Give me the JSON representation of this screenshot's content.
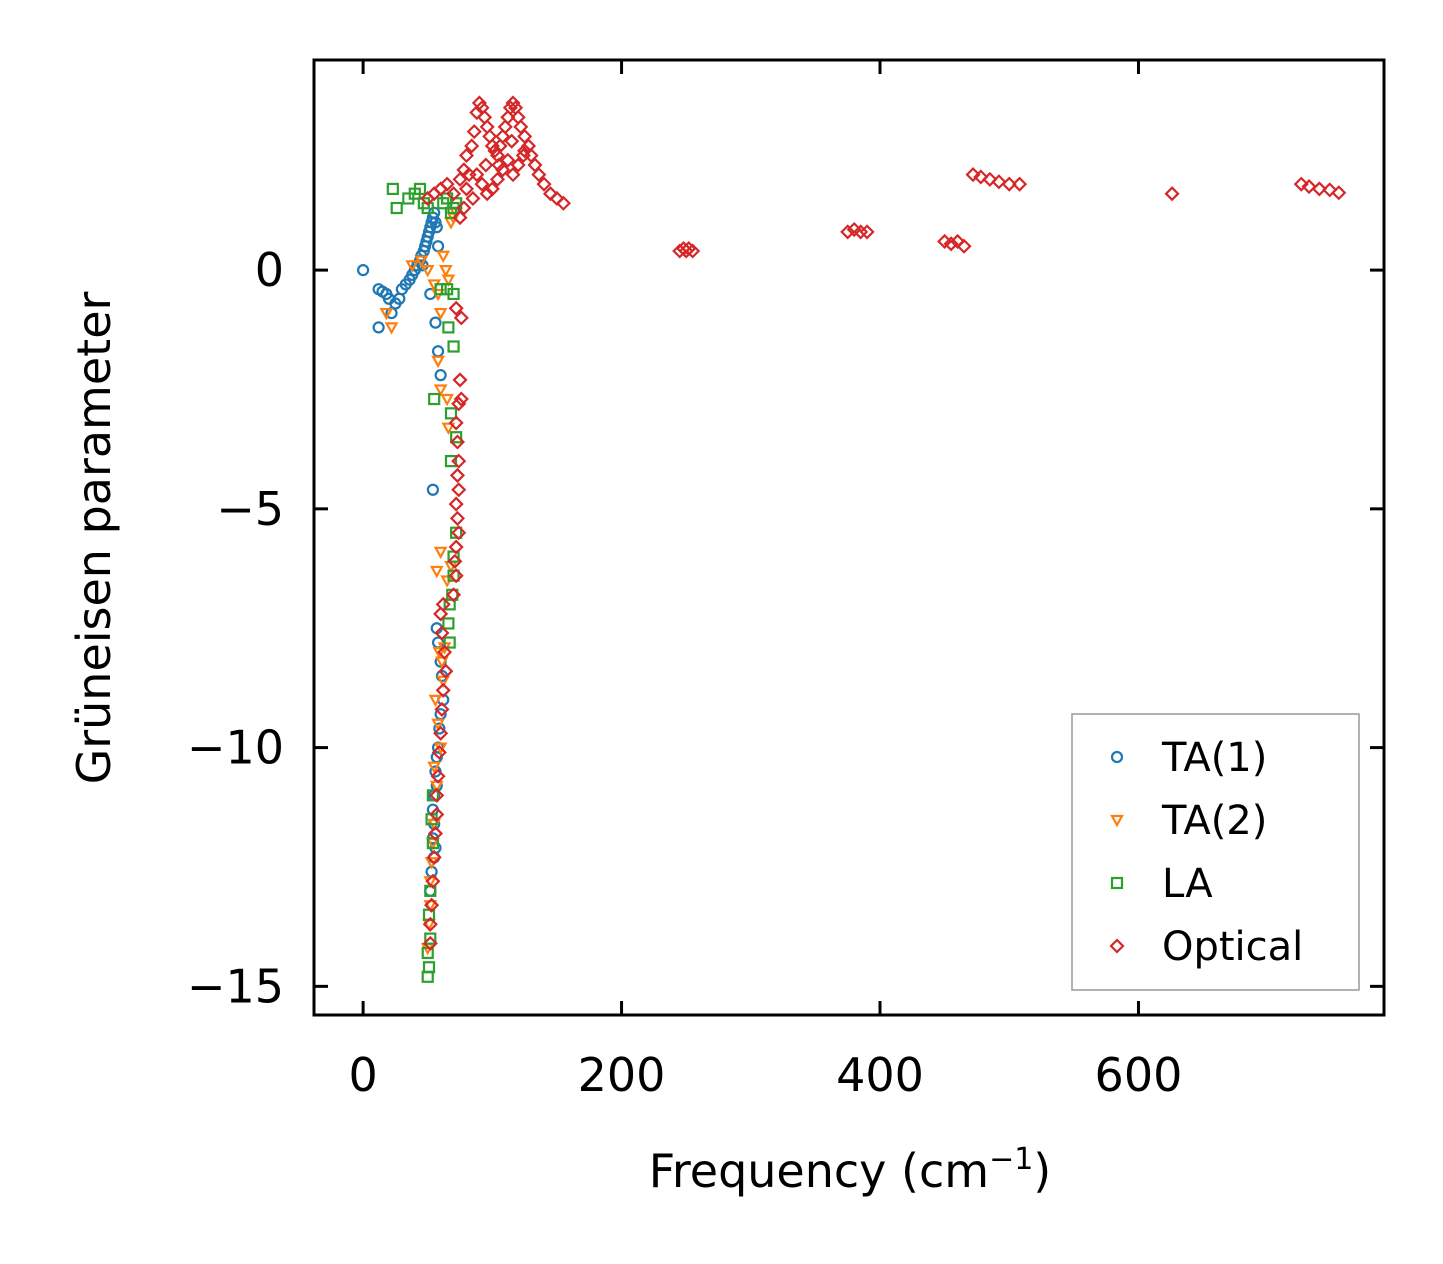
{
  "chart_data": {
    "type": "scatter",
    "title": "",
    "xlabel": "Frequency (cm",
    "xlabel_superscript": "−1",
    "xlabel_suffix": ")",
    "ylabel": "Grüneisen parameter",
    "xlim": [
      -38,
      790
    ],
    "ylim": [
      -15.6,
      4.4
    ],
    "x_ticks": [
      0,
      200,
      400,
      600
    ],
    "x_tick_labels": [
      "0",
      "200",
      "400",
      "600"
    ],
    "y_ticks": [
      0,
      -5,
      -10,
      -15
    ],
    "y_tick_labels": [
      "0",
      "−5",
      "−10",
      "−15"
    ],
    "grid": false,
    "legend_position": "lower-right",
    "series": [
      {
        "name": "TA(1)",
        "marker": "circle",
        "color": "#1f77b4",
        "points": [
          [
            0,
            0.0
          ],
          [
            12,
            -0.4
          ],
          [
            15,
            -0.45
          ],
          [
            18,
            -0.5
          ],
          [
            20,
            -0.6
          ],
          [
            22,
            -0.9
          ],
          [
            25,
            -0.7
          ],
          [
            28,
            -0.6
          ],
          [
            12,
            -1.2
          ],
          [
            30,
            -0.4
          ],
          [
            33,
            -0.3
          ],
          [
            36,
            -0.2
          ],
          [
            38,
            -0.1
          ],
          [
            40,
            0.0
          ],
          [
            42,
            0.1
          ],
          [
            44,
            0.2
          ],
          [
            45,
            0.3
          ],
          [
            46,
            0.1
          ],
          [
            47,
            0.4
          ],
          [
            48,
            0.5
          ],
          [
            49,
            0.6
          ],
          [
            50,
            0.7
          ],
          [
            51,
            0.8
          ],
          [
            52,
            0.9
          ],
          [
            53,
            1.0
          ],
          [
            54,
            1.1
          ],
          [
            55,
            1.2
          ],
          [
            56,
            1.0
          ],
          [
            57,
            0.9
          ],
          [
            58,
            0.5
          ],
          [
            52,
            -0.5
          ],
          [
            56,
            -1.1
          ],
          [
            58,
            -1.7
          ],
          [
            60,
            -2.2
          ],
          [
            54,
            -4.6
          ],
          [
            57,
            -7.5
          ],
          [
            58,
            -7.8
          ],
          [
            60,
            -8.2
          ],
          [
            61,
            -8.5
          ],
          [
            62,
            -9.0
          ],
          [
            60,
            -9.3
          ],
          [
            59,
            -9.6
          ],
          [
            58,
            -10.0
          ],
          [
            57,
            -10.2
          ],
          [
            56,
            -10.5
          ],
          [
            57,
            -10.8
          ],
          [
            55,
            -11.0
          ],
          [
            54,
            -11.3
          ],
          [
            55,
            -11.6
          ],
          [
            54,
            -11.9
          ],
          [
            56,
            -12.1
          ],
          [
            55,
            -12.3
          ],
          [
            53,
            -12.6
          ],
          [
            52,
            -13.0
          ]
        ]
      },
      {
        "name": "TA(2)",
        "marker": "triangle-down",
        "color": "#ff7f0e",
        "points": [
          [
            18,
            -0.9
          ],
          [
            22,
            -1.2
          ],
          [
            38,
            0.1
          ],
          [
            45,
            0.2
          ],
          [
            50,
            0.0
          ],
          [
            55,
            -0.3
          ],
          [
            58,
            -0.5
          ],
          [
            60,
            -0.9
          ],
          [
            62,
            0.3
          ],
          [
            64,
            0.0
          ],
          [
            66,
            -0.2
          ],
          [
            68,
            1.0
          ],
          [
            70,
            1.1
          ],
          [
            72,
            1.2
          ],
          [
            58,
            -1.9
          ],
          [
            60,
            -2.5
          ],
          [
            65,
            -2.7
          ],
          [
            66,
            -3.3
          ],
          [
            57,
            -6.3
          ],
          [
            60,
            -5.9
          ],
          [
            65,
            -6.5
          ],
          [
            68,
            -6.2
          ],
          [
            59,
            -8.0
          ],
          [
            61,
            -8.2
          ],
          [
            62,
            -8.6
          ],
          [
            63,
            -7.9
          ],
          [
            56,
            -9.0
          ],
          [
            58,
            -9.5
          ],
          [
            60,
            -10.0
          ],
          [
            55,
            -10.4
          ],
          [
            57,
            -10.8
          ],
          [
            55,
            -11.6
          ],
          [
            54,
            -12.0
          ],
          [
            53,
            -12.4
          ],
          [
            52,
            -12.8
          ],
          [
            52,
            -13.3
          ],
          [
            51,
            -13.7
          ],
          [
            50,
            -14.2
          ]
        ]
      },
      {
        "name": "LA",
        "marker": "square",
        "color": "#2ca02c",
        "points": [
          [
            23,
            1.7
          ],
          [
            26,
            1.3
          ],
          [
            35,
            1.5
          ],
          [
            40,
            1.6
          ],
          [
            44,
            1.7
          ],
          [
            47,
            1.4
          ],
          [
            50,
            1.3
          ],
          [
            62,
            1.4
          ],
          [
            65,
            1.5
          ],
          [
            68,
            1.2
          ],
          [
            70,
            1.3
          ],
          [
            72,
            1.4
          ],
          [
            60,
            -0.4
          ],
          [
            65,
            -0.4
          ],
          [
            70,
            -0.5
          ],
          [
            66,
            -1.2
          ],
          [
            70,
            -1.6
          ],
          [
            55,
            -2.7
          ],
          [
            68,
            -3.0
          ],
          [
            72,
            -3.5
          ],
          [
            68,
            -4.0
          ],
          [
            72,
            -5.5
          ],
          [
            70,
            -6.0
          ],
          [
            70,
            -6.4
          ],
          [
            69,
            -6.8
          ],
          [
            67,
            -7.0
          ],
          [
            66,
            -7.4
          ],
          [
            67,
            -7.8
          ],
          [
            54,
            -11.0
          ],
          [
            53,
            -11.5
          ],
          [
            54,
            -12.0
          ],
          [
            52,
            -13.0
          ],
          [
            51,
            -13.5
          ],
          [
            52,
            -14.0
          ],
          [
            50,
            -14.3
          ],
          [
            51,
            -14.6
          ],
          [
            50,
            -14.8
          ]
        ]
      },
      {
        "name": "Optical",
        "marker": "diamond",
        "color": "#d62728",
        "points": [
          [
            50,
            1.5
          ],
          [
            55,
            1.6
          ],
          [
            60,
            1.7
          ],
          [
            65,
            1.8
          ],
          [
            70,
            1.6
          ],
          [
            75,
            1.9
          ],
          [
            78,
            2.1
          ],
          [
            80,
            2.4
          ],
          [
            82,
            2.0
          ],
          [
            84,
            2.6
          ],
          [
            86,
            2.9
          ],
          [
            88,
            3.3
          ],
          [
            90,
            3.5
          ],
          [
            92,
            3.4
          ],
          [
            94,
            3.2
          ],
          [
            96,
            3.0
          ],
          [
            98,
            2.8
          ],
          [
            100,
            2.6
          ],
          [
            102,
            2.5
          ],
          [
            104,
            2.4
          ],
          [
            106,
            2.6
          ],
          [
            108,
            2.8
          ],
          [
            110,
            3.0
          ],
          [
            112,
            3.2
          ],
          [
            114,
            3.4
          ],
          [
            116,
            3.5
          ],
          [
            118,
            3.4
          ],
          [
            120,
            3.2
          ],
          [
            122,
            3.0
          ],
          [
            125,
            2.8
          ],
          [
            128,
            2.6
          ],
          [
            130,
            2.4
          ],
          [
            133,
            2.2
          ],
          [
            136,
            2.0
          ],
          [
            140,
            1.8
          ],
          [
            145,
            1.6
          ],
          [
            150,
            1.5
          ],
          [
            155,
            1.4
          ],
          [
            88,
            2.0
          ],
          [
            92,
            1.8
          ],
          [
            96,
            1.6
          ],
          [
            100,
            1.7
          ],
          [
            104,
            1.9
          ],
          [
            108,
            2.1
          ],
          [
            112,
            2.3
          ],
          [
            116,
            2.0
          ],
          [
            120,
            2.2
          ],
          [
            124,
            2.4
          ],
          [
            85,
            1.5
          ],
          [
            80,
            1.7
          ],
          [
            95,
            2.2
          ],
          [
            105,
            2.2
          ],
          [
            115,
            2.7
          ],
          [
            125,
            2.5
          ],
          [
            78,
            1.3
          ],
          [
            75,
            1.1
          ],
          [
            72,
            -0.8
          ],
          [
            76,
            -1.0
          ],
          [
            75,
            -2.3
          ],
          [
            74,
            -2.8
          ],
          [
            76,
            -2.7
          ],
          [
            72,
            -3.2
          ],
          [
            73,
            -3.6
          ],
          [
            74,
            -4.0
          ],
          [
            73,
            -4.3
          ],
          [
            74,
            -4.6
          ],
          [
            72,
            -4.9
          ],
          [
            73,
            -5.2
          ],
          [
            74,
            -5.5
          ],
          [
            72,
            -5.8
          ],
          [
            71,
            -6.1
          ],
          [
            72,
            -6.4
          ],
          [
            70,
            -6.8
          ],
          [
            62,
            -7.0
          ],
          [
            60,
            -7.2
          ],
          [
            61,
            -7.6
          ],
          [
            63,
            -8.0
          ],
          [
            64,
            -8.4
          ],
          [
            62,
            -8.8
          ],
          [
            61,
            -9.2
          ],
          [
            60,
            -9.7
          ],
          [
            59,
            -10.1
          ],
          [
            58,
            -10.6
          ],
          [
            57,
            -11.0
          ],
          [
            57,
            -11.4
          ],
          [
            56,
            -11.8
          ],
          [
            55,
            -12.3
          ],
          [
            54,
            -12.8
          ],
          [
            53,
            -13.3
          ],
          [
            52,
            -13.7
          ],
          [
            52,
            -14.1
          ],
          [
            245,
            0.4
          ],
          [
            248,
            0.45
          ],
          [
            250,
            0.4
          ],
          [
            252,
            0.45
          ],
          [
            255,
            0.4
          ],
          [
            375,
            0.8
          ],
          [
            380,
            0.85
          ],
          [
            385,
            0.8
          ],
          [
            390,
            0.8
          ],
          [
            450,
            0.6
          ],
          [
            455,
            0.55
          ],
          [
            460,
            0.6
          ],
          [
            465,
            0.5
          ],
          [
            472,
            2.0
          ],
          [
            478,
            1.95
          ],
          [
            485,
            1.9
          ],
          [
            492,
            1.85
          ],
          [
            500,
            1.8
          ],
          [
            508,
            1.8
          ],
          [
            626,
            1.6
          ],
          [
            726,
            1.8
          ],
          [
            732,
            1.75
          ],
          [
            740,
            1.7
          ],
          [
            748,
            1.68
          ],
          [
            755,
            1.62
          ]
        ]
      }
    ]
  }
}
